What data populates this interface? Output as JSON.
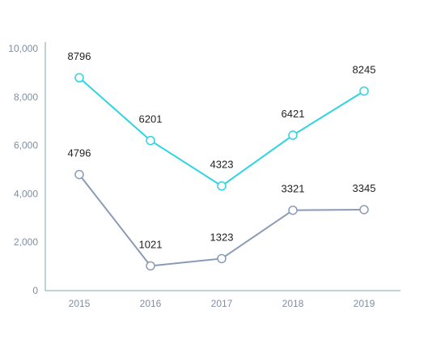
{
  "chart_data": {
    "type": "line",
    "categories": [
      "2015",
      "2016",
      "2017",
      "2018",
      "2019"
    ],
    "ylim": [
      0,
      10000
    ],
    "yticks": [
      0,
      2000,
      4000,
      6000,
      8000,
      10000
    ],
    "ytick_labels": [
      "0",
      "2,000",
      "4,000",
      "6,000",
      "8,000",
      "10,000"
    ],
    "grid": false,
    "title": "",
    "xlabel": "",
    "ylabel": "",
    "series": [
      {
        "values": [
          8796,
          6201,
          4323,
          6421,
          8245
        ],
        "color": "#2dd4e4"
      },
      {
        "values": [
          4796,
          1021,
          1323,
          3321,
          3345
        ],
        "color": "#8a9bb8"
      }
    ],
    "axis_color": "#7fa7a5",
    "tick_label_color": "#7f8ea3",
    "data_label_color": "#222222"
  }
}
